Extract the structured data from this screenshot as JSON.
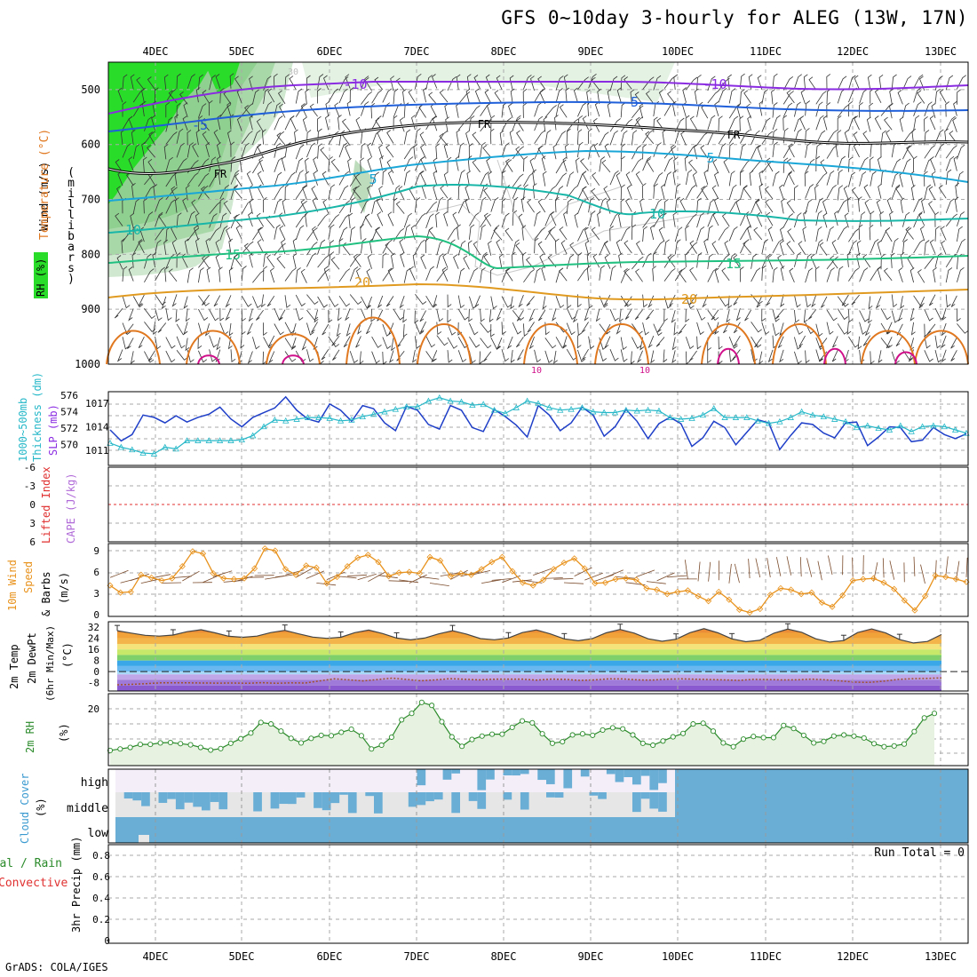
{
  "title": "GFS 0~10day 3-hourly for ALEG (13W, 17N)",
  "footer": "GrADS: COLA/IGES",
  "colors": {
    "rh_green": "#2adc2a",
    "temp_violet": "#8a2be2",
    "temp_blue": "#1f5fd9",
    "temp_cyan": "#1aa7d8",
    "temp_teal": "#18b6a8",
    "temp_green": "#20c080",
    "temp_orange": "#e09a20",
    "temp_deeporange": "#e07820",
    "temp_magenta": "#d0108a",
    "slp": "#1f3fc8",
    "thickness": "#26b8c8",
    "wind10": "#e8921c",
    "rh2m": "#2a8a2a",
    "cloud": "#6aaed6",
    "cloud_mid": "#e6e6e6",
    "cloud_high": "#f4eef8"
  },
  "chart_data": [
    {
      "type": "time-height section",
      "panel": "upper-air",
      "x_dates": [
        "4DEC",
        "5DEC",
        "6DEC",
        "7DEC",
        "8DEC",
        "9DEC",
        "10DEC",
        "11DEC",
        "12DEC",
        "13DEC"
      ],
      "ylabel_chars": [
        "(",
        "m",
        "i",
        "l",
        "l",
        "i",
        "b",
        "a",
        "r",
        "s",
        ")"
      ],
      "ylabel_parts": {
        "wind": "Wind (m/s)",
        "temp": "Temperature (°C)",
        "rh": "RH (%)"
      },
      "yticks": [
        "500",
        "600",
        "700",
        "800",
        "900",
        "1000"
      ],
      "ylim": [
        450,
        1000
      ],
      "contour_labels": [
        "-10",
        "-10",
        "-5",
        "-5",
        "FR",
        "FR",
        "FR",
        "5",
        "5",
        "10",
        "10",
        "15",
        "15",
        "20",
        "20",
        "10",
        "10",
        "30"
      ]
    },
    {
      "type": "line",
      "panel": "thickness-slp",
      "ylabel_left": "1000~500mb Thickness (dm)",
      "ylabel_right": "SLP (mb)",
      "ylabel_left_parts": [
        "1000~500mb",
        "Thickness (dm)"
      ],
      "yticks_left": [
        "576",
        "574",
        "572",
        "570"
      ],
      "yticks_right": [
        "1017",
        "1014",
        "1011"
      ],
      "series": [
        {
          "name": "SLP",
          "axis": "right",
          "values": [
            1013.6,
            1012.2,
            1013.0,
            1015.5,
            1015.2,
            1014.5,
            1015.4,
            1014.6,
            1015.2,
            1015.6,
            1016.5,
            1015.0,
            1014.0,
            1015.2,
            1015.8,
            1016.4,
            1017.8,
            1016.1,
            1015.0,
            1014.6,
            1016.9,
            1016.1,
            1014.7,
            1016.7,
            1016.3,
            1014.5,
            1013.5,
            1016.6,
            1016.1,
            1014.3,
            1013.7,
            1016.7,
            1016.1,
            1013.9,
            1013.4,
            1016.2,
            1015.3,
            1014.2,
            1012.7,
            1016.7,
            1015.5,
            1013.5,
            1014.5,
            1016.5,
            1015.5,
            1012.8,
            1014.0,
            1016.2,
            1014.7,
            1012.5,
            1014.4,
            1015.2,
            1014.4,
            1011.5,
            1012.6,
            1014.7,
            1013.9,
            1011.7,
            1013.3,
            1014.9,
            1014.5,
            1011.1,
            1012.9,
            1014.5,
            1014.3,
            1013.2,
            1012.6,
            1014.5,
            1014.6,
            1011.6,
            1012.7,
            1014.0,
            1013.9,
            1012.1,
            1012.3,
            1013.9,
            1013.0,
            1012.5,
            1013.1
          ]
        },
        {
          "name": "Thickness",
          "axis": "left",
          "values": [
            570.2,
            569.7,
            569.4,
            569.0,
            568.9,
            569.7,
            569.5,
            570.5,
            570.5,
            570.5,
            570.5,
            570.5,
            570.6,
            571.1,
            572.2,
            573.0,
            572.9,
            573.1,
            573.3,
            573.3,
            573.2,
            572.9,
            573.0,
            573.4,
            573.7,
            574.0,
            574.3,
            574.6,
            574.6,
            575.3,
            575.7,
            575.3,
            575.2,
            574.8,
            574.9,
            574.2,
            573.8,
            574.5,
            575.3,
            575.0,
            574.5,
            574.2,
            574.3,
            574.5,
            574.0,
            573.9,
            573.9,
            574.2,
            574.1,
            574.2,
            574.1,
            573.3,
            573.1,
            573.2,
            573.6,
            574.4,
            573.3,
            573.3,
            573.3,
            572.9,
            572.6,
            572.8,
            573.3,
            574.0,
            573.6,
            573.4,
            573.1,
            572.8,
            572.1,
            572.3,
            572.0,
            571.8,
            572.3,
            571.6,
            572.2,
            572.3,
            572.2,
            571.8,
            571.4
          ]
        }
      ]
    },
    {
      "type": "line",
      "panel": "li-cape",
      "ylabel_left": "Lifted Index",
      "ylabel_right": "CAPE (J/kg)",
      "yticks": [
        "-6",
        "-3",
        "0",
        "3",
        "6"
      ],
      "ylim": [
        -6,
        6
      ],
      "series": []
    },
    {
      "type": "line",
      "panel": "wind10m",
      "ylabel": "10m Wind Speed & Barbs (m/s)",
      "ylabel_parts": [
        "10m Wind",
        "Speed",
        "& Barbs",
        "(m/s)"
      ],
      "yticks": [
        "9",
        "6",
        "3",
        "0"
      ],
      "ylim": [
        0,
        10
      ],
      "series": [
        {
          "name": "10m Wind Speed",
          "values": [
            4.1,
            3.1,
            3.2,
            5.6,
            5.2,
            4.8,
            5.1,
            6.8,
            8.9,
            8.6,
            5.8,
            5.1,
            5.0,
            5.1,
            6.5,
            9.3,
            9.0,
            6.4,
            5.6,
            6.9,
            6.6,
            4.4,
            5.3,
            6.8,
            8.0,
            8.4,
            7.4,
            5.4,
            5.9,
            6.0,
            5.8,
            8.1,
            7.6,
            5.4,
            5.8,
            5.6,
            6.4,
            7.4,
            8.1,
            6.1,
            4.5,
            4.1,
            4.9,
            6.4,
            7.3,
            7.9,
            6.5,
            4.4,
            4.5,
            5.0,
            5.1,
            4.9,
            3.7,
            3.5,
            2.9,
            3.2,
            3.4,
            2.6,
            1.9,
            3.2,
            2.1,
            0.7,
            0.3,
            0.8,
            2.8,
            3.7,
            3.5,
            2.9,
            3.1,
            1.7,
            1.1,
            2.7,
            4.8,
            5.0,
            5.1,
            4.5,
            3.6,
            2.0,
            0.6,
            2.6,
            5.5,
            5.3,
            5.0,
            4.6
          ]
        }
      ]
    },
    {
      "type": "area",
      "panel": "temp2m",
      "ylabel": "2m Temp 2m DewPt (6hr Min/Max) (°C)",
      "ylabel_parts": [
        "2m Temp",
        "2m DewPt",
        "(6hr Min/Max)",
        "(°C)"
      ],
      "yticks": [
        "32",
        "24",
        "16",
        "8",
        "0",
        "-8"
      ],
      "ylim": [
        -14,
        36
      ],
      "series": [
        {
          "name": "2m Temp",
          "values": [
            29.5,
            27.8,
            26.2,
            25.6,
            26.4,
            28.8,
            30.2,
            28.0,
            25.5,
            24.8,
            25.6,
            28.2,
            29.8,
            27.2,
            24.9,
            24.0,
            24.8,
            28.1,
            30.0,
            27.5,
            24.2,
            22.9,
            24.2,
            27.2,
            29.5,
            27.1,
            23.8,
            23.0,
            24.3,
            28.2,
            30.1,
            27.2,
            23.6,
            22.3,
            23.8,
            28.0,
            30.4,
            27.8,
            23.7,
            21.9,
            23.4,
            28.1,
            31.0,
            28.0,
            23.6,
            21.6,
            22.6,
            27.7,
            30.7,
            28.4,
            23.7,
            21.3,
            22.4,
            28.2,
            30.8,
            27.9,
            23.1,
            20.7,
            21.8,
            26.8
          ]
        },
        {
          "name": "2m DewPt",
          "values": [
            -9.5,
            -9.2,
            -8.7,
            -8.1,
            -8.1,
            -8.1,
            -8.2,
            -8.3,
            -8.2,
            -8.4,
            -8.0,
            -8.4,
            -8.1,
            -8.2,
            -6.7,
            -5.2,
            -5.9,
            -6.7,
            -5.7,
            -4.7,
            -5.6,
            -6.6,
            -6.0,
            -5.1,
            -5.5,
            -6.0,
            -5.5,
            -5.4,
            -5.4,
            -6.1,
            -5.4,
            -5.6,
            -6.3,
            -6.0,
            -5.2,
            -5.3,
            -6.0,
            -6.1,
            -5.5,
            -5.2,
            -5.5,
            -5.7,
            -6.0,
            -6.3,
            -5.6,
            -5.7,
            -6.0,
            -5.9,
            -5.4,
            -5.9,
            -6.7,
            -7.6,
            -7.8,
            -6.9,
            -5.6,
            -5.1,
            -4.9,
            -4.5
          ]
        }
      ]
    },
    {
      "type": "line",
      "panel": "rh2m",
      "ylabel": "2m RH (%)",
      "ylabel_parts": [
        "2m RH",
        "(%)"
      ],
      "yticks": [
        "20"
      ],
      "ylim": [
        5,
        24
      ],
      "series": [
        {
          "name": "2m RH",
          "values": [
            9.0,
            9.4,
            9.8,
            10.6,
            10.6,
            11.0,
            11.1,
            10.8,
            10.5,
            9.8,
            9.1,
            9.5,
            10.9,
            12.1,
            13.6,
            16.4,
            16.0,
            14.1,
            12.2,
            11.0,
            12.2,
            13.0,
            12.9,
            13.8,
            14.6,
            12.9,
            9.4,
            10.4,
            12.5,
            17.1,
            18.8,
            21.7,
            20.9,
            16.6,
            12.6,
            10.1,
            11.9,
            12.8,
            13.3,
            13.3,
            15.1,
            16.8,
            16.3,
            13.4,
            10.9,
            11.3,
            13.1,
            13.4,
            13.0,
            14.4,
            15.0,
            14.7,
            13.1,
            10.9,
            10.4,
            11.5,
            12.6,
            13.5,
            16.0,
            16.2,
            14.1,
            11.0,
            10.0,
            12.0,
            12.7,
            12.4,
            12.4,
            15.6,
            14.8,
            13.0,
            11.0,
            11.4,
            12.8,
            13.1,
            12.8,
            12.3,
            10.8,
            10.0,
            10.2,
            10.7,
            14.0,
            17.6,
            18.8
          ]
        }
      ]
    },
    {
      "type": "area",
      "panel": "cloud",
      "ylabel": "Cloud Cover (%)",
      "ylabel_parts": [
        "Cloud Cover",
        "(%)"
      ],
      "categories": [
        "high",
        "middle",
        "low"
      ],
      "x": [
        "4DEC",
        "5DEC",
        "6DEC",
        "7DEC",
        "8DEC",
        "9DEC",
        "10DEC",
        "11DEC",
        "12DEC",
        "13DEC"
      ]
    },
    {
      "type": "line",
      "panel": "precip",
      "ylabel": "3hr Precip (mm)",
      "ylabel_left_parts": [
        "Total / Rain",
        "Convective"
      ],
      "annotation": "Run Total = 0",
      "yticks": [
        "0.8",
        "0.6",
        "0.4",
        "0.2",
        "0"
      ],
      "ylim": [
        0,
        0.9
      ],
      "series": []
    }
  ]
}
